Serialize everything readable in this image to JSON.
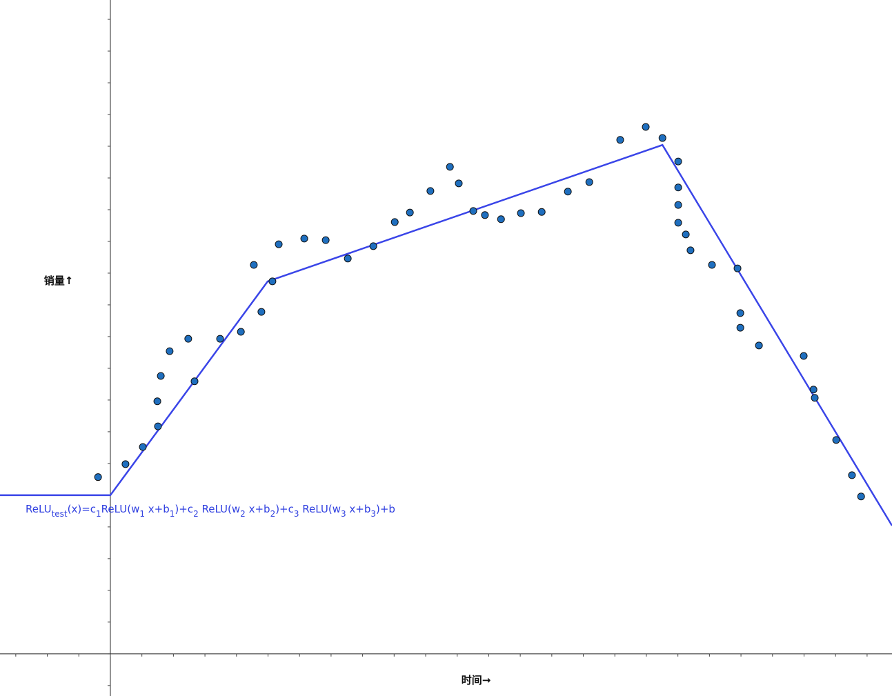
{
  "chart_data": {
    "type": "scatter",
    "x_label": "时间→",
    "y_label": "销量↑",
    "xlim": [
      -3.5,
      24.79
    ],
    "ylim": [
      -1.33,
      20.61
    ],
    "xticks": [
      -3,
      -2,
      -1,
      0,
      1,
      2,
      3,
      4,
      5,
      6,
      7,
      8,
      9,
      10,
      11,
      12,
      13,
      14,
      15,
      16,
      17,
      18,
      19,
      20,
      21,
      22,
      23,
      24
    ],
    "yticks": [
      -1,
      0,
      1,
      2,
      3,
      4,
      5,
      6,
      7,
      8,
      9,
      10,
      11,
      12,
      13,
      14,
      15,
      16,
      17,
      18,
      19,
      20
    ],
    "series": [
      {
        "type": "scatter",
        "color": "#1f6fbf",
        "x": [
          -0.39,
          0.48,
          1.03,
          1.51,
          1.49,
          1.6,
          1.88,
          2.47,
          2.67,
          3.48,
          4.14,
          4.79,
          4.55,
          5.14,
          5.34,
          6.15,
          6.83,
          7.53,
          8.34,
          9.02,
          9.5,
          10.15,
          10.77,
          11.05,
          11.51,
          11.88,
          12.39,
          13.02,
          13.68,
          14.51,
          15.19,
          16.17,
          16.98,
          17.51,
          18.01,
          18.01,
          18.01,
          18.01,
          18.25,
          18.4,
          19.08,
          19.89,
          19.98,
          19.98,
          20.57,
          21.99,
          22.3,
          22.34,
          23.02,
          23.52,
          23.81
        ],
        "values": [
          5.57,
          5.98,
          6.52,
          7.17,
          7.96,
          8.76,
          9.54,
          9.93,
          8.59,
          9.93,
          10.15,
          10.78,
          12.26,
          11.74,
          12.91,
          13.09,
          13.04,
          12.46,
          12.85,
          13.61,
          13.91,
          14.59,
          15.35,
          14.83,
          13.96,
          13.83,
          13.7,
          13.89,
          13.93,
          14.57,
          14.87,
          16.2,
          16.61,
          16.26,
          15.52,
          14.7,
          14.15,
          13.59,
          13.22,
          12.72,
          12.26,
          12.15,
          10.74,
          10.28,
          9.72,
          9.39,
          8.33,
          8.07,
          6.74,
          5.63,
          4.96
        ]
      },
      {
        "type": "line",
        "color": "#3a45e8",
        "x": [
          -3.5,
          0,
          4.99,
          17.51,
          24.79
        ],
        "values": [
          5.0,
          5.0,
          11.74,
          16.04,
          4.04
        ]
      }
    ],
    "formula": {
      "color": "#2f3fe0",
      "parts": [
        "ReLU",
        "test",
        "(x)=c",
        "1",
        "ReLU(w",
        "1",
        " x+b",
        "1",
        ")+c",
        "2",
        " ReLU(w",
        "2",
        " x+b",
        "2",
        ")+c",
        "3",
        " ReLU(w",
        "3",
        " x+b",
        "3",
        ")+b"
      ]
    }
  }
}
